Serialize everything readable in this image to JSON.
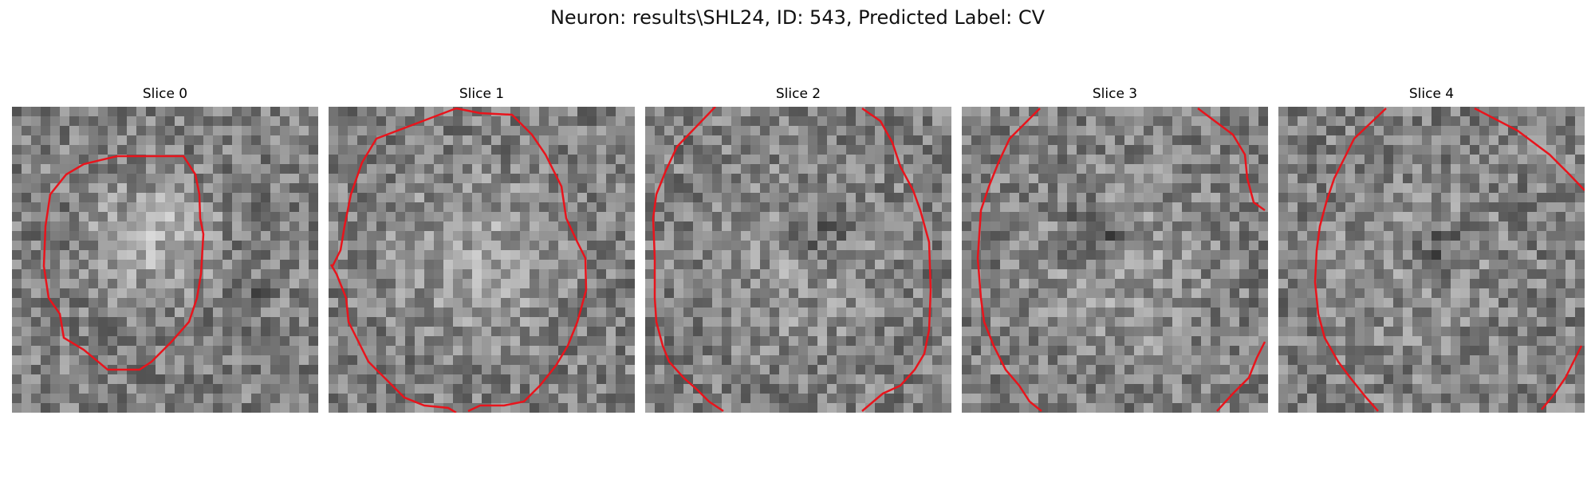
{
  "figure": {
    "title": "Neuron: results\\SHL24, ID: 543, Predicted Label: CV"
  },
  "colors": {
    "contour": "#e8141c",
    "background": "#ffffff"
  },
  "slices": [
    {
      "label": "Slice 0"
    },
    {
      "label": "Slice 1"
    },
    {
      "label": "Slice 2"
    },
    {
      "label": "Slice 3"
    },
    {
      "label": "Slice 4"
    }
  ]
}
